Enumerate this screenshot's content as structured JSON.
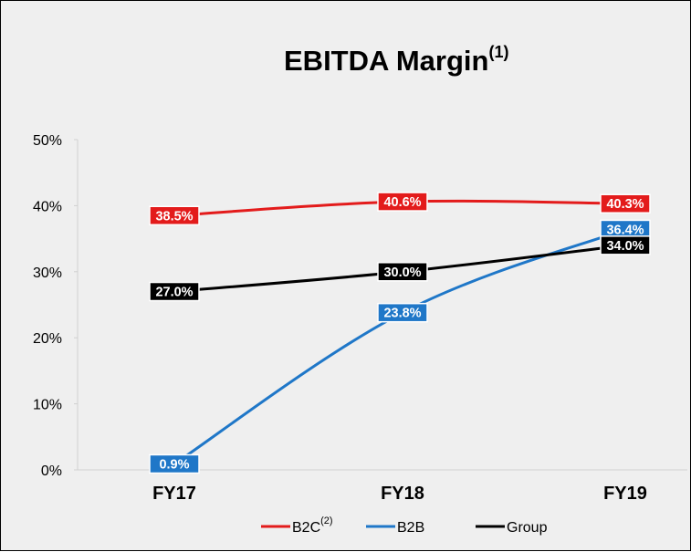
{
  "chart_data": {
    "type": "line",
    "title": "EBITDA Margin",
    "title_superscript": "(1)",
    "categories": [
      "FY17",
      "FY18",
      "FY19"
    ],
    "y_ticks": [
      "0%",
      "10%",
      "20%",
      "30%",
      "40%",
      "50%"
    ],
    "ylim": [
      0,
      50
    ],
    "grid": false,
    "legend_position": "bottom",
    "series": [
      {
        "name": "B2C",
        "superscript": "(2)",
        "color": "#e31b1b",
        "values": [
          38.5,
          40.6,
          40.3
        ],
        "labels": [
          "38.5%",
          "40.6%",
          "40.3%"
        ]
      },
      {
        "name": "B2B",
        "superscript": "",
        "color": "#1f77c8",
        "values": [
          0.9,
          23.8,
          36.4
        ],
        "labels": [
          "0.9%",
          "23.8%",
          "36.4%"
        ]
      },
      {
        "name": "Group",
        "superscript": "",
        "color": "#000000",
        "values": [
          27.0,
          30.0,
          34.0
        ],
        "labels": [
          "27.0%",
          "30.0%",
          "34.0%"
        ]
      }
    ]
  }
}
